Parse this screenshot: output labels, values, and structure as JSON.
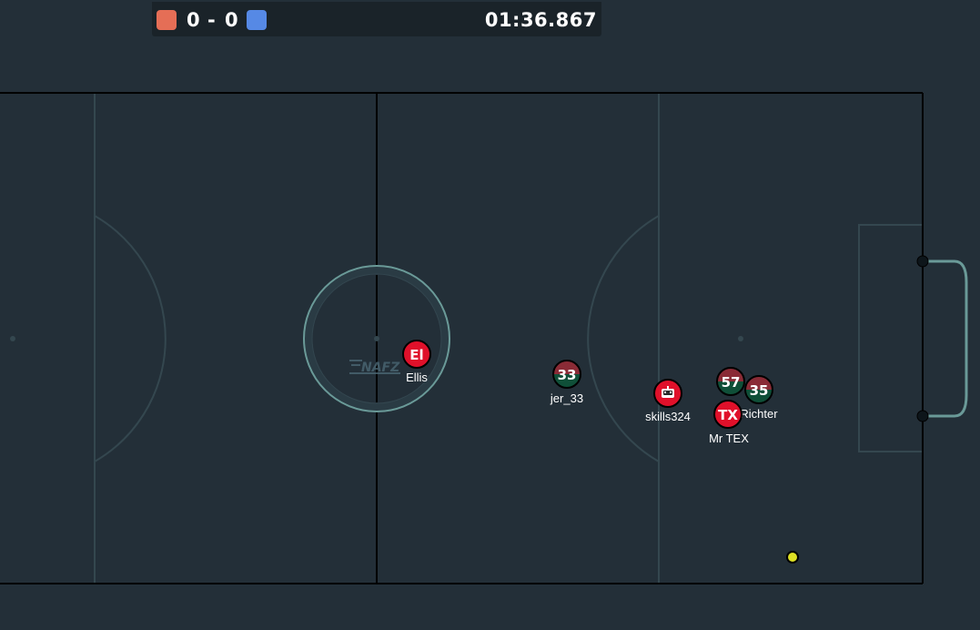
{
  "scoreboard": {
    "red_score": "0",
    "separator": "-",
    "blue_score": "0",
    "timer": "01:36.867",
    "red_color": "#e56e56",
    "blue_color": "#5689e5"
  },
  "pitch": {
    "background": "#232f38",
    "line_color": "#34474f",
    "center_circle_color": "#6a9a98",
    "boundary_color": "#000000",
    "goal_color": "#6a9a98",
    "watermark": "NAFZ"
  },
  "players": [
    {
      "name": "Ellis",
      "avatar": "El",
      "team": "red",
      "style": "solid"
    },
    {
      "name": "jer_33",
      "avatar": "33",
      "team": "red",
      "style": "split"
    },
    {
      "name": "skills324",
      "avatar": "robot-icon",
      "team": "red",
      "style": "solid"
    },
    {
      "name": "",
      "avatar": "57",
      "team": "red",
      "style": "split"
    },
    {
      "name": "Richter",
      "avatar": "35",
      "team": "red",
      "style": "split"
    },
    {
      "name": "Mr TEX",
      "avatar": "TX",
      "team": "red",
      "style": "solid"
    }
  ],
  "team_colors": {
    "solid_fill": "#e0102a",
    "split_top": "#8a2b36",
    "split_bottom": "#0f4f38"
  },
  "ball": {
    "color": "#dde024"
  }
}
